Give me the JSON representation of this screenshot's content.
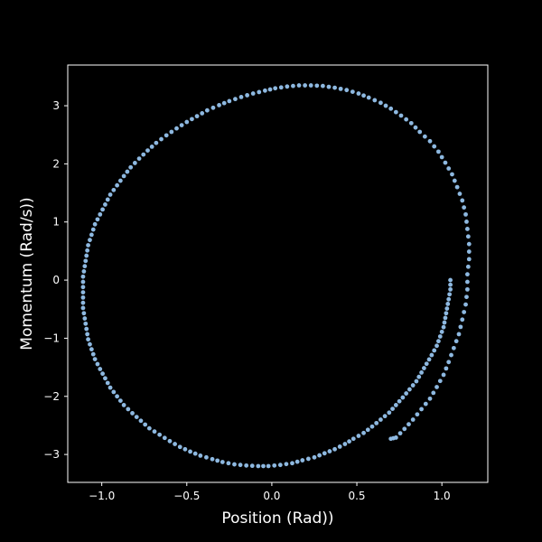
{
  "chart_data": {
    "type": "scatter",
    "title": "",
    "xlabel": "Position (Rad))",
    "ylabel": "Momentum (Rad/s))",
    "xlim": [
      -1.2,
      1.27
    ],
    "ylim": [
      -3.48,
      3.7
    ],
    "xticks": [
      -1.0,
      -0.5,
      0.0,
      0.5,
      1.0
    ],
    "xtick_labels": [
      "−1.0",
      "−0.5",
      "0.0",
      "0.5",
      "1.0"
    ],
    "yticks": [
      -3,
      -2,
      -1,
      0,
      1,
      2,
      3
    ],
    "ytick_labels": [
      "−3",
      "−2",
      "−1",
      "0",
      "1",
      "2",
      "3"
    ],
    "grid": false,
    "colors": {
      "background": "#000000",
      "axes": "#ffffff",
      "points": "#8db8e0",
      "text": "#ffffff"
    },
    "series": [
      {
        "points": [
          [
            1.05,
            0.0
          ],
          [
            1.05,
            -0.16
          ],
          [
            1.04,
            -0.33
          ],
          [
            1.03,
            -0.49
          ],
          [
            1.02,
            -0.65
          ],
          [
            1.01,
            -0.81
          ],
          [
            0.99,
            -0.97
          ],
          [
            0.97,
            -1.13
          ],
          [
            0.94,
            -1.29
          ],
          [
            0.91,
            -1.44
          ],
          [
            0.88,
            -1.59
          ],
          [
            0.85,
            -1.74
          ],
          [
            0.81,
            -1.88
          ],
          [
            0.77,
            -2.02
          ],
          [
            0.73,
            -2.15
          ],
          [
            0.69,
            -2.28
          ],
          [
            0.64,
            -2.4
          ],
          [
            0.59,
            -2.52
          ],
          [
            0.54,
            -2.63
          ],
          [
            0.48,
            -2.73
          ],
          [
            0.43,
            -2.82
          ],
          [
            0.37,
            -2.91
          ],
          [
            0.31,
            -2.98
          ],
          [
            0.25,
            -3.05
          ],
          [
            0.18,
            -3.1
          ],
          [
            0.12,
            -3.15
          ],
          [
            0.05,
            -3.18
          ],
          [
            -0.02,
            -3.2
          ],
          [
            -0.08,
            -3.2
          ],
          [
            -0.15,
            -3.19
          ],
          [
            -0.22,
            -3.17
          ],
          [
            -0.29,
            -3.13
          ],
          [
            -0.35,
            -3.08
          ],
          [
            -0.42,
            -3.02
          ],
          [
            -0.48,
            -2.95
          ],
          [
            -0.54,
            -2.87
          ],
          [
            -0.6,
            -2.77
          ],
          [
            -0.66,
            -2.66
          ],
          [
            -0.72,
            -2.55
          ],
          [
            -0.77,
            -2.42
          ],
          [
            -0.82,
            -2.29
          ],
          [
            -0.87,
            -2.15
          ],
          [
            -0.91,
            -2.0
          ],
          [
            -0.95,
            -1.85
          ],
          [
            -0.98,
            -1.69
          ],
          [
            -1.01,
            -1.53
          ],
          [
            -1.04,
            -1.36
          ],
          [
            -1.06,
            -1.19
          ],
          [
            -1.08,
            -1.02
          ],
          [
            -1.09,
            -0.84
          ],
          [
            -1.1,
            -0.66
          ],
          [
            -1.11,
            -0.48
          ],
          [
            -1.11,
            -0.3
          ],
          [
            -1.11,
            -0.12
          ],
          [
            -1.11,
            0.06
          ],
          [
            -1.1,
            0.24
          ],
          [
            -1.09,
            0.42
          ],
          [
            -1.08,
            0.6
          ],
          [
            -1.06,
            0.78
          ],
          [
            -1.04,
            0.96
          ],
          [
            -1.01,
            1.13
          ],
          [
            -0.98,
            1.3
          ],
          [
            -0.95,
            1.47
          ],
          [
            -0.91,
            1.63
          ],
          [
            -0.87,
            1.79
          ],
          [
            -0.83,
            1.94
          ],
          [
            -0.78,
            2.09
          ],
          [
            -0.73,
            2.23
          ],
          [
            -0.68,
            2.36
          ],
          [
            -0.62,
            2.49
          ],
          [
            -0.56,
            2.61
          ],
          [
            -0.5,
            2.72
          ],
          [
            -0.44,
            2.82
          ],
          [
            -0.38,
            2.92
          ],
          [
            -0.31,
            3.01
          ],
          [
            -0.25,
            3.08
          ],
          [
            -0.18,
            3.15
          ],
          [
            -0.11,
            3.21
          ],
          [
            -0.04,
            3.26
          ],
          [
            0.02,
            3.3
          ],
          [
            0.09,
            3.33
          ],
          [
            0.16,
            3.35
          ],
          [
            0.23,
            3.35
          ],
          [
            0.3,
            3.34
          ],
          [
            0.37,
            3.31
          ],
          [
            0.44,
            3.27
          ],
          [
            0.51,
            3.21
          ],
          [
            0.57,
            3.14
          ],
          [
            0.64,
            3.05
          ],
          [
            0.7,
            2.95
          ],
          [
            0.76,
            2.83
          ],
          [
            0.82,
            2.7
          ],
          [
            0.87,
            2.55
          ],
          [
            0.93,
            2.39
          ],
          [
            0.98,
            2.21
          ],
          [
            1.02,
            2.02
          ],
          [
            1.06,
            1.82
          ],
          [
            1.09,
            1.6
          ],
          [
            1.12,
            1.37
          ],
          [
            1.14,
            1.13
          ],
          [
            1.15,
            0.88
          ],
          [
            1.16,
            0.62
          ],
          [
            1.16,
            0.36
          ],
          [
            1.15,
            0.1
          ],
          [
            1.15,
            -0.16
          ],
          [
            1.14,
            -0.42
          ],
          [
            1.12,
            -0.68
          ],
          [
            1.1,
            -0.93
          ],
          [
            1.07,
            -1.17
          ],
          [
            1.04,
            -1.41
          ],
          [
            1.01,
            -1.63
          ],
          [
            0.97,
            -1.84
          ],
          [
            0.93,
            -2.04
          ],
          [
            0.88,
            -2.22
          ],
          [
            0.83,
            -2.4
          ],
          [
            0.78,
            -2.56
          ],
          [
            0.73,
            -2.71
          ],
          [
            0.7,
            -2.73
          ]
        ]
      }
    ]
  }
}
